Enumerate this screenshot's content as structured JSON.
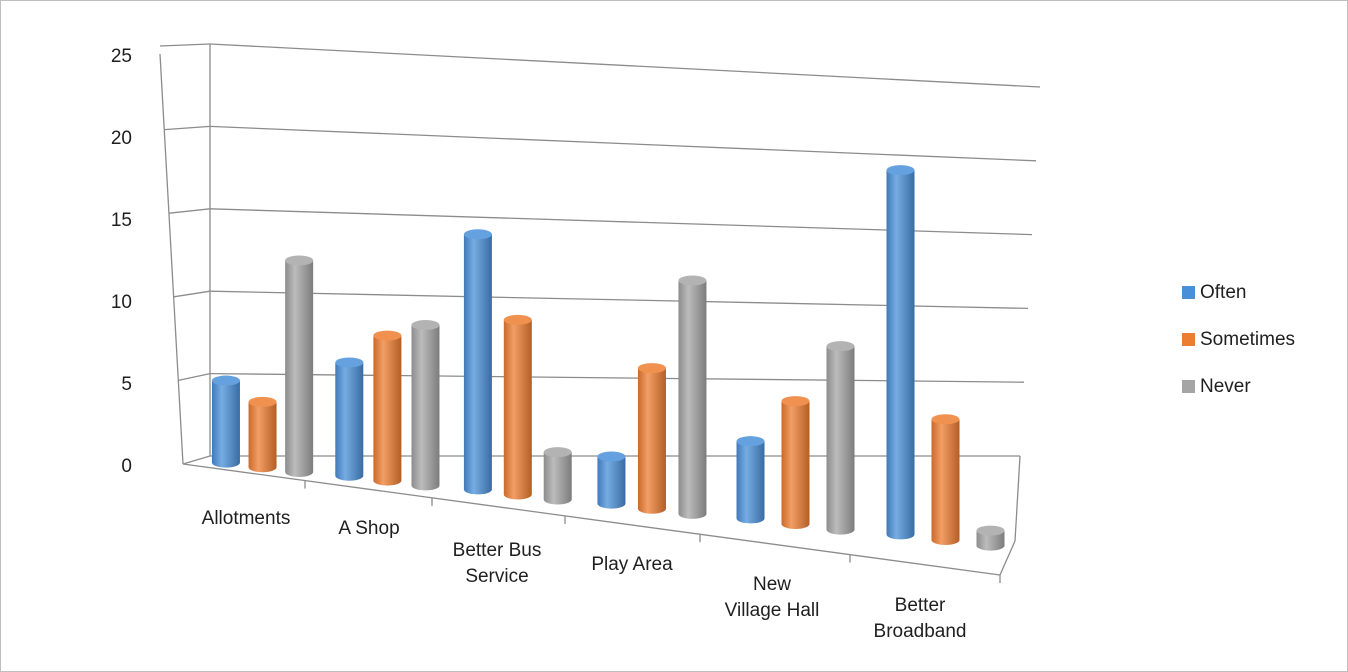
{
  "chart_data": {
    "type": "bar",
    "title": "",
    "xlabel": "",
    "ylabel": "",
    "ylim": [
      0,
      25
    ],
    "yticks": [
      "0",
      "5",
      "10",
      "15",
      "20",
      "25"
    ],
    "categories": [
      [
        "Allotments"
      ],
      [
        "A Shop"
      ],
      [
        "Better Bus",
        "Service"
      ],
      [
        "Play Area"
      ],
      [
        "New",
        "Village Hall"
      ],
      [
        "Better",
        "Broadband"
      ]
    ],
    "series": [
      {
        "name": "Often",
        "color": "#4a90d9",
        "values": [
          5,
          7,
          16,
          3,
          5,
          24
        ]
      },
      {
        "name": "Sometimes",
        "color": "#ed7d31",
        "values": [
          4,
          9,
          11,
          9,
          8,
          8
        ]
      },
      {
        "name": "Never",
        "color": "#a5a5a5",
        "values": [
          13,
          10,
          3,
          15,
          12,
          1
        ]
      }
    ],
    "legend_position": "right",
    "grid": true,
    "style": "3d-cylinder"
  }
}
